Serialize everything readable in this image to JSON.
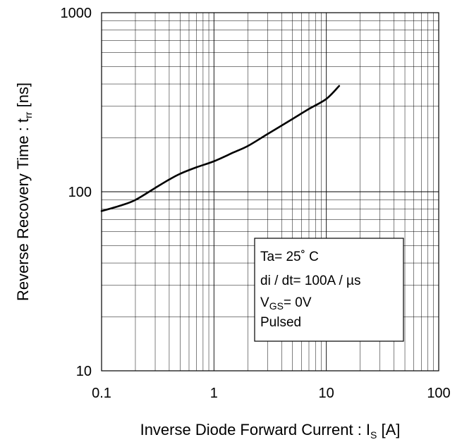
{
  "chart_data": {
    "type": "line",
    "x_scale": "log",
    "y_scale": "log",
    "xlim": [
      0.1,
      100
    ],
    "ylim": [
      10,
      1000
    ],
    "grid": true,
    "x_ticks": [
      "0.1",
      "1",
      "10",
      "100"
    ],
    "y_ticks": [
      "10",
      "100",
      "1000"
    ],
    "xlabel": {
      "main": "Inverse Diode  Forward Current : I",
      "sub": "S",
      "unit": " [A]"
    },
    "ylabel": {
      "main": "Reverse Recovery Time : t",
      "sub": "rr",
      "unit": " [ns]"
    },
    "annotation": {
      "line1": "Ta= 25˚ C",
      "line2": "di / dt= 100A  / µs",
      "line3_main": "V",
      "line3_sub": "GS",
      "line3_rest": "= 0V",
      "line4": "Pulsed"
    },
    "series": [
      {
        "x": [
          0.1,
          0.15,
          0.2,
          0.3,
          0.4,
          0.5,
          0.7,
          1,
          1.5,
          2,
          3,
          5,
          7,
          10,
          13
        ],
        "y": [
          78,
          84,
          90,
          105,
          117,
          126,
          137,
          148,
          166,
          180,
          210,
          255,
          290,
          330,
          390
        ]
      }
    ]
  }
}
